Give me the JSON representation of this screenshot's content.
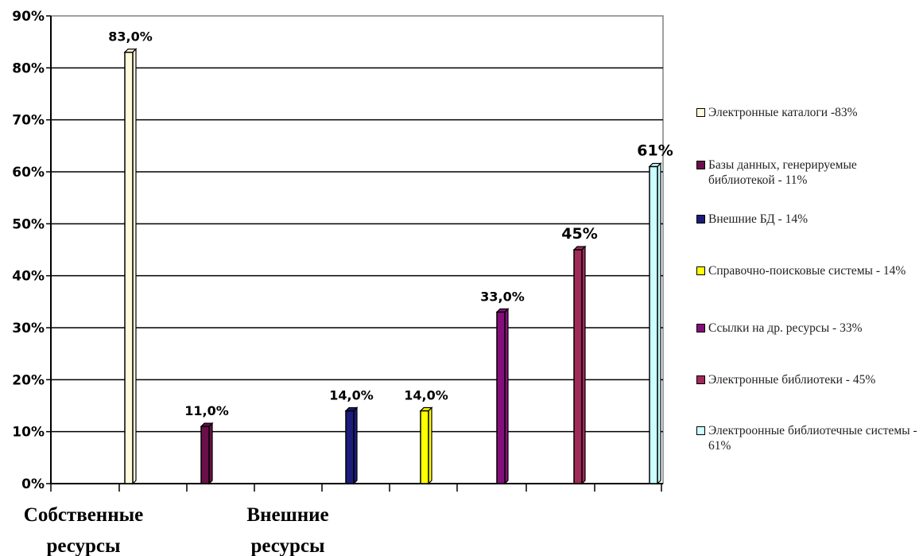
{
  "chart_data": {
    "type": "bar",
    "ylim": [
      0,
      90
    ],
    "y_ticks": [
      "0%",
      "10%",
      "20%",
      "30%",
      "40%",
      "50%",
      "60%",
      "70%",
      "80%",
      "90%"
    ],
    "grid": true,
    "legend_position": "right",
    "category_groups": [
      "Собственные ресурсы",
      "Внешние ресурсы"
    ],
    "series": [
      {
        "name": "Электронные каталоги -83%",
        "value": 83,
        "label": "83,0%",
        "color": "#fffadc"
      },
      {
        "name": "Базы данных, генерируемые библиотекой - 11%",
        "value": 11,
        "label": "11,0%",
        "color": "#6b0f4a"
      },
      {
        "name": "Внешние БД  - 14%",
        "value": 14,
        "label": "14,0%",
        "color": "#1c1c7c"
      },
      {
        "name": "Справочно-поисковые системы - 14%",
        "value": 14,
        "label": "14,0%",
        "color": "#ffff00"
      },
      {
        "name": "Ссылки на др. ресурсы - 33%",
        "value": 33,
        "label": "33,0%",
        "color": "#850f7a"
      },
      {
        "name": "Электронные библиотеки - 45%",
        "value": 45,
        "label": "45%",
        "color": "#a02a58"
      },
      {
        "name": "Электроонные библиотечные системы - 61%",
        "value": 61,
        "label": "61%",
        "color": "#ccffff"
      }
    ]
  }
}
